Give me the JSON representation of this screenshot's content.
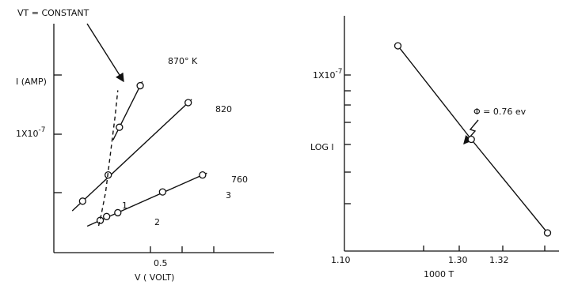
{
  "chart_data": [
    {
      "type": "line",
      "xlabel": "V ( VOLT)",
      "ylabel": "I (AMP)",
      "x_ticks": [
        {
          "value": 0.5,
          "label": "0.5"
        }
      ],
      "y_tick_label": "1X10",
      "y_tick_exp": "-7",
      "series": [
        {
          "name": "870° K",
          "x": [
            0.395,
            0.46
          ],
          "y": [
            0.64,
            0.91
          ]
        },
        {
          "name": "820",
          "x": [
            0.28,
            0.36,
            0.61
          ],
          "y": [
            0.16,
            0.33,
            0.8
          ]
        },
        {
          "name": "760",
          "x": [
            0.335,
            0.355,
            0.39,
            0.53,
            0.655
          ],
          "y": [
            0.035,
            0.06,
            0.085,
            0.22,
            0.33
          ]
        }
      ],
      "dashed_curve": {
        "x": [
          0.33,
          0.338,
          0.352,
          0.37,
          0.382,
          0.39
        ],
        "y": [
          0.0,
          0.07,
          0.22,
          0.52,
          0.72,
          0.88
        ]
      },
      "annotation": "VT = CONSTANT",
      "point_labels": [
        "1",
        "2",
        "3"
      ],
      "grid": false
    },
    {
      "type": "line",
      "xlabel": "1000 T",
      "ylabel": "LOG I",
      "x_ticks": [
        {
          "value": 1.1,
          "label": "1.10"
        },
        {
          "value": 1.3,
          "label": "1.30"
        },
        {
          "value": 1.32,
          "label": "1.32"
        }
      ],
      "y_tick_label": "1X10",
      "y_tick_exp": "-7",
      "series": [
        {
          "name": "",
          "x": [
            1.175,
            1.278,
            1.385
          ],
          "y": [
            1.0,
            0.5,
            0.0
          ]
        }
      ],
      "annotation": "Φ = 0.76 ev",
      "grid": false
    }
  ]
}
